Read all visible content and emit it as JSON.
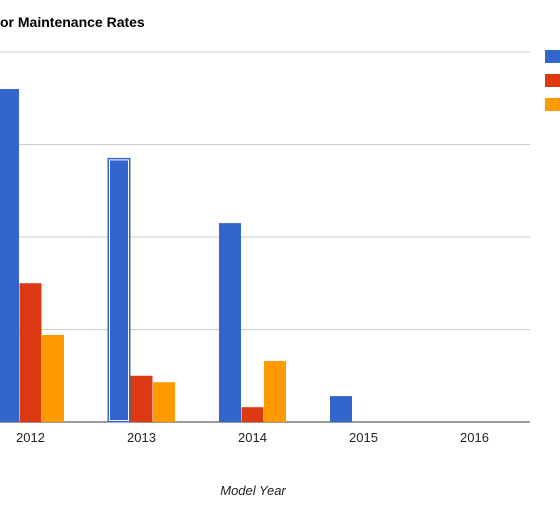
{
  "chart_data": {
    "type": "bar",
    "title": "or Maintenance Rates",
    "xlabel": "Model Year",
    "ylabel": "",
    "categories": [
      "2012",
      "2013",
      "2014",
      "2015",
      "2016"
    ],
    "series": [
      {
        "color": "#3366cc",
        "values": [
          3.6,
          2.85,
          2.15,
          0.28,
          0
        ]
      },
      {
        "color": "#dc3912",
        "values": [
          1.5,
          0.5,
          0.16,
          0,
          0
        ]
      },
      {
        "color": "#ff9900",
        "values": [
          0.94,
          0.43,
          0.66,
          0,
          0
        ]
      }
    ],
    "ylim": [
      0,
      4
    ],
    "grid": true,
    "legend": "right",
    "highlighted": {
      "series": 0,
      "category": 1
    }
  }
}
